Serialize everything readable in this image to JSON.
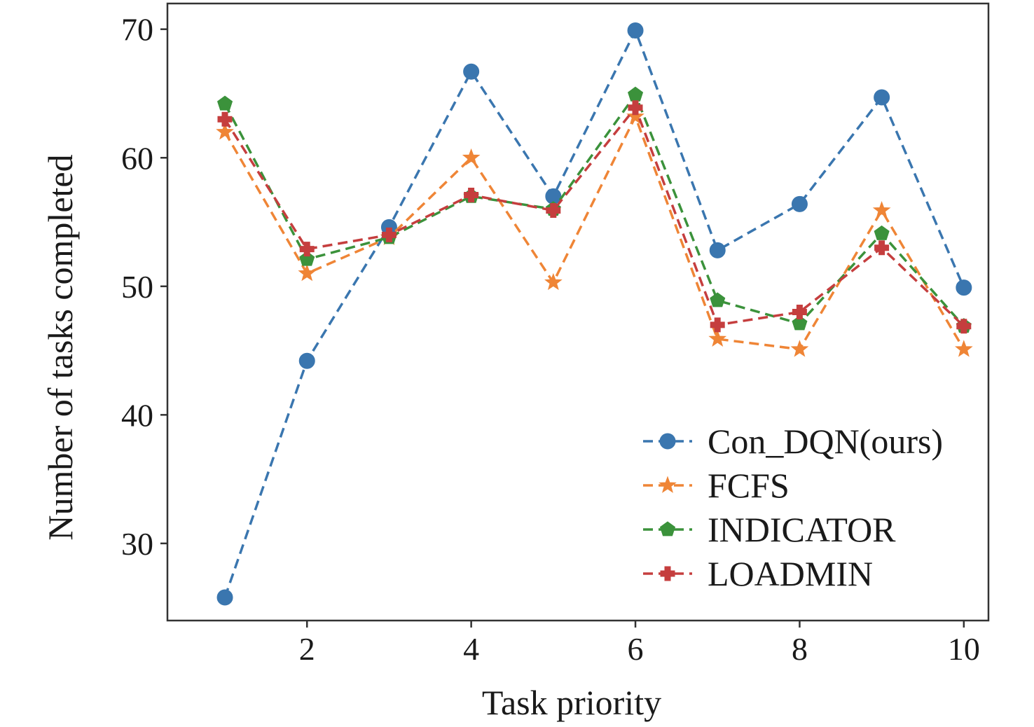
{
  "chart_data": {
    "type": "line",
    "xlabel": "Task priority",
    "ylabel": "Number of tasks completed",
    "x": [
      1,
      2,
      3,
      4,
      5,
      6,
      7,
      8,
      9,
      10
    ],
    "xlim": [
      0.3,
      10.3
    ],
    "ylim": [
      24,
      72
    ],
    "xticks": [
      2,
      4,
      6,
      8,
      10
    ],
    "yticks": [
      30,
      40,
      50,
      60,
      70
    ],
    "grid": false,
    "legend_position": "lower-right",
    "series": [
      {
        "name": "Con_DQN(ours)",
        "color": "#3a76af",
        "marker": "circle",
        "values": [
          25.8,
          44.2,
          54.6,
          66.7,
          57.0,
          69.9,
          52.8,
          56.4,
          64.7,
          49.9
        ]
      },
      {
        "name": "FCFS",
        "color": "#ef8536",
        "marker": "star",
        "values": [
          62.0,
          51.0,
          53.8,
          60.0,
          50.3,
          63.2,
          45.9,
          45.1,
          55.9,
          45.1
        ]
      },
      {
        "name": "INDICATOR",
        "color": "#3b923b",
        "marker": "pentagon",
        "values": [
          64.2,
          52.1,
          53.8,
          57.0,
          56.0,
          64.9,
          48.9,
          47.1,
          54.1,
          46.9
        ]
      },
      {
        "name": "LOADMIN",
        "color": "#c53e3e",
        "marker": "plus",
        "values": [
          63.0,
          52.9,
          54.0,
          57.1,
          55.9,
          63.9,
          47.0,
          48.0,
          53.0,
          46.9
        ]
      }
    ]
  }
}
